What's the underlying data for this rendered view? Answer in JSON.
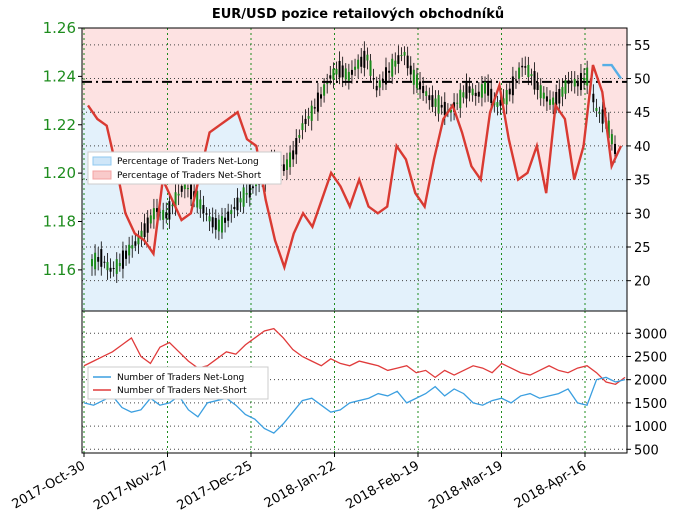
{
  "chart_data": {
    "title": "EUR/USD pozice retailových obchodníků",
    "x_dates": [
      "2017-Oct-30",
      "2017-Nov-27",
      "2017-Dec-25",
      "2018-Jan-22",
      "2018-Feb-19",
      "2018-Mar-19",
      "2018-Apr-16"
    ],
    "top": {
      "type": "candlestick+line",
      "left_axis": {
        "ticks": [
          "1.16",
          "1.18",
          "1.20",
          "1.22",
          "1.24",
          "1.26"
        ],
        "ylim": [
          1.143,
          1.26
        ]
      },
      "right_axis": {
        "ticks": [
          "20",
          "25",
          "30",
          "35",
          "40",
          "45",
          "50",
          "55"
        ],
        "ylim": [
          15.5,
          57.5
        ]
      },
      "reference_line": 49.5,
      "legend": [
        {
          "name": "Percentage of Traders Net-Long",
          "color": "#8fc8f0"
        },
        {
          "name": "Percentage of Traders Net-Short",
          "color": "#f4a3a3"
        }
      ],
      "price_close_approx": [
        1.163,
        1.165,
        1.16,
        1.162,
        1.168,
        1.172,
        1.178,
        1.185,
        1.182,
        1.188,
        1.195,
        1.192,
        1.186,
        1.18,
        1.178,
        1.183,
        1.188,
        1.192,
        1.196,
        1.2,
        1.205,
        1.202,
        1.208,
        1.22,
        1.225,
        1.232,
        1.24,
        1.243,
        1.24,
        1.245,
        1.248,
        1.235,
        1.24,
        1.245,
        1.25,
        1.24,
        1.235,
        1.23,
        1.228,
        1.225,
        1.23,
        1.235,
        1.232,
        1.236,
        1.228,
        1.23,
        1.237,
        1.245,
        1.24,
        1.233,
        1.229,
        1.232,
        1.238,
        1.237,
        1.24,
        1.226,
        1.222,
        1.21
      ],
      "net_short_pct": [
        46,
        44,
        43,
        37,
        30,
        27,
        26,
        24,
        35,
        32,
        29,
        30,
        36,
        42,
        43,
        44,
        45,
        41,
        40,
        32,
        26,
        22,
        27,
        30,
        28,
        32,
        36,
        34,
        31,
        35,
        31,
        30,
        31,
        40,
        38,
        33,
        31,
        38,
        44,
        46,
        42,
        37,
        35,
        45,
        49,
        41,
        35,
        36,
        40,
        33,
        46,
        44,
        35,
        40,
        52,
        48,
        37,
        40
      ],
      "net_long_pct": [
        null,
        null,
        null,
        null,
        null,
        null,
        null,
        null,
        null,
        null,
        null,
        null,
        null,
        null,
        null,
        null,
        null,
        null,
        null,
        null,
        null,
        null,
        null,
        null,
        null,
        null,
        null,
        null,
        null,
        null,
        null,
        null,
        null,
        null,
        null,
        null,
        null,
        null,
        null,
        null,
        null,
        null,
        null,
        null,
        null,
        null,
        null,
        null,
        null,
        null,
        null,
        null,
        null,
        null,
        null,
        52,
        52,
        50
      ]
    },
    "bottom": {
      "type": "line",
      "right_axis": {
        "ticks": [
          "500",
          "1000",
          "1500",
          "2000",
          "2500",
          "3000"
        ],
        "ylim": [
          420,
          3480
        ]
      },
      "legend": [
        {
          "name": "Number of Traders Net-Long",
          "color": "#3b9fe0"
        },
        {
          "name": "Number of Traders Net-Short",
          "color": "#e03b3b"
        }
      ],
      "net_long": [
        1500,
        1450,
        1550,
        1650,
        1400,
        1300,
        1350,
        1600,
        1450,
        1500,
        1650,
        1350,
        1200,
        1500,
        1550,
        1600,
        1450,
        1250,
        1150,
        950,
        850,
        1050,
        1300,
        1550,
        1600,
        1450,
        1300,
        1350,
        1500,
        1550,
        1600,
        1700,
        1650,
        1750,
        1500,
        1600,
        1700,
        1850,
        1650,
        1800,
        1700,
        1500,
        1450,
        1550,
        1600,
        1500,
        1650,
        1700,
        1600,
        1650,
        1700,
        1800,
        1500,
        1450,
        2000,
        2050,
        1950,
        2000
      ],
      "net_short": [
        2300,
        2400,
        2500,
        2600,
        2750,
        2900,
        2500,
        2350,
        2700,
        2800,
        2600,
        2400,
        2250,
        2300,
        2450,
        2600,
        2550,
        2750,
        2900,
        3050,
        3100,
        2900,
        2650,
        2500,
        2400,
        2300,
        2450,
        2350,
        2300,
        2400,
        2350,
        2300,
        2200,
        2250,
        2300,
        2150,
        2200,
        2050,
        2200,
        2100,
        2200,
        2300,
        2250,
        2150,
        2350,
        2250,
        2150,
        2100,
        2200,
        2300,
        2200,
        2150,
        2250,
        2300,
        2150,
        1950,
        1900,
        2050
      ]
    }
  }
}
